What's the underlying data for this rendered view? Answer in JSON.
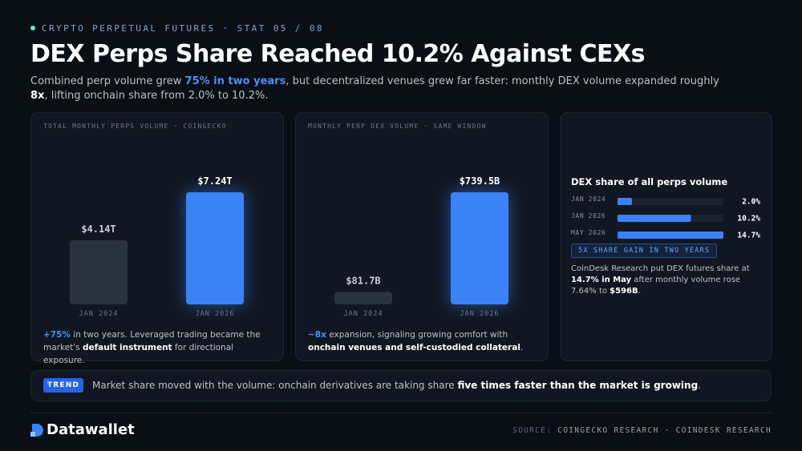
{
  "eyebrow": "CRYPTO PERPETUAL FUTURES · STAT 05 / 08",
  "title": "DEX Perps Share Reached 10.2% Against CEXs",
  "subtitle": [
    "Combined perp volume grew ",
    "75% in two years",
    ", but decentralized venues grew far faster: monthly DEX volume expanded roughly ",
    "8x",
    ", lifting onchain share from 2.0% to 10.2%."
  ],
  "chart_data": [
    {
      "type": "bar",
      "title": "TOTAL MONTHLY PERPS VOLUME · COINGECKO",
      "categories": [
        "JAN 2024",
        "JAN 2026"
      ],
      "values": [
        4.14,
        7.24
      ],
      "value_labels": [
        "$4.14T",
        "$7.24T"
      ],
      "colors": [
        "#2a333f",
        "#3b82f6"
      ],
      "caption": [
        "+75%",
        " in two years. Leveraged trading became the market's ",
        "default instrument",
        " for directional exposure."
      ]
    },
    {
      "type": "bar",
      "title": "MONTHLY PERP DEX VOLUME · SAME WINDOW",
      "categories": [
        "JAN 2024",
        "JAN 2026"
      ],
      "values": [
        81.7,
        739.5
      ],
      "value_labels": [
        "$81.7B",
        "$739.5B"
      ],
      "colors": [
        "#2a333f",
        "#3b82f6"
      ],
      "caption": [
        "~8x",
        " expansion, signaling growing comfort with ",
        "onchain venues and self-custodied collateral",
        "."
      ]
    },
    {
      "type": "hbar",
      "title": "DEX share of all perps volume",
      "categories": [
        "JAN 2024",
        "JAN 2026",
        "MAY 2026"
      ],
      "values": [
        2.0,
        10.2,
        14.7
      ],
      "value_labels": [
        "2.0%",
        "10.2%",
        "14.7%"
      ],
      "color": "#3b82f6",
      "badge": "5X SHARE GAIN IN TWO YEARS",
      "caption": [
        "CoinDesk Research put DEX futures share at ",
        "14.7% in May",
        " after monthly volume rose 7.64% to ",
        "$596B",
        "."
      ]
    }
  ],
  "trend": {
    "tag": "TREND",
    "text": [
      "Market share moved with the volume: onchain derivatives are taking share ",
      "five times faster than the market is growing",
      "."
    ]
  },
  "footer": {
    "brand": "Datawallet",
    "source_label": "SOURCE:",
    "sources": "COINGECKO RESEARCH · COINDESK RESEARCH"
  }
}
